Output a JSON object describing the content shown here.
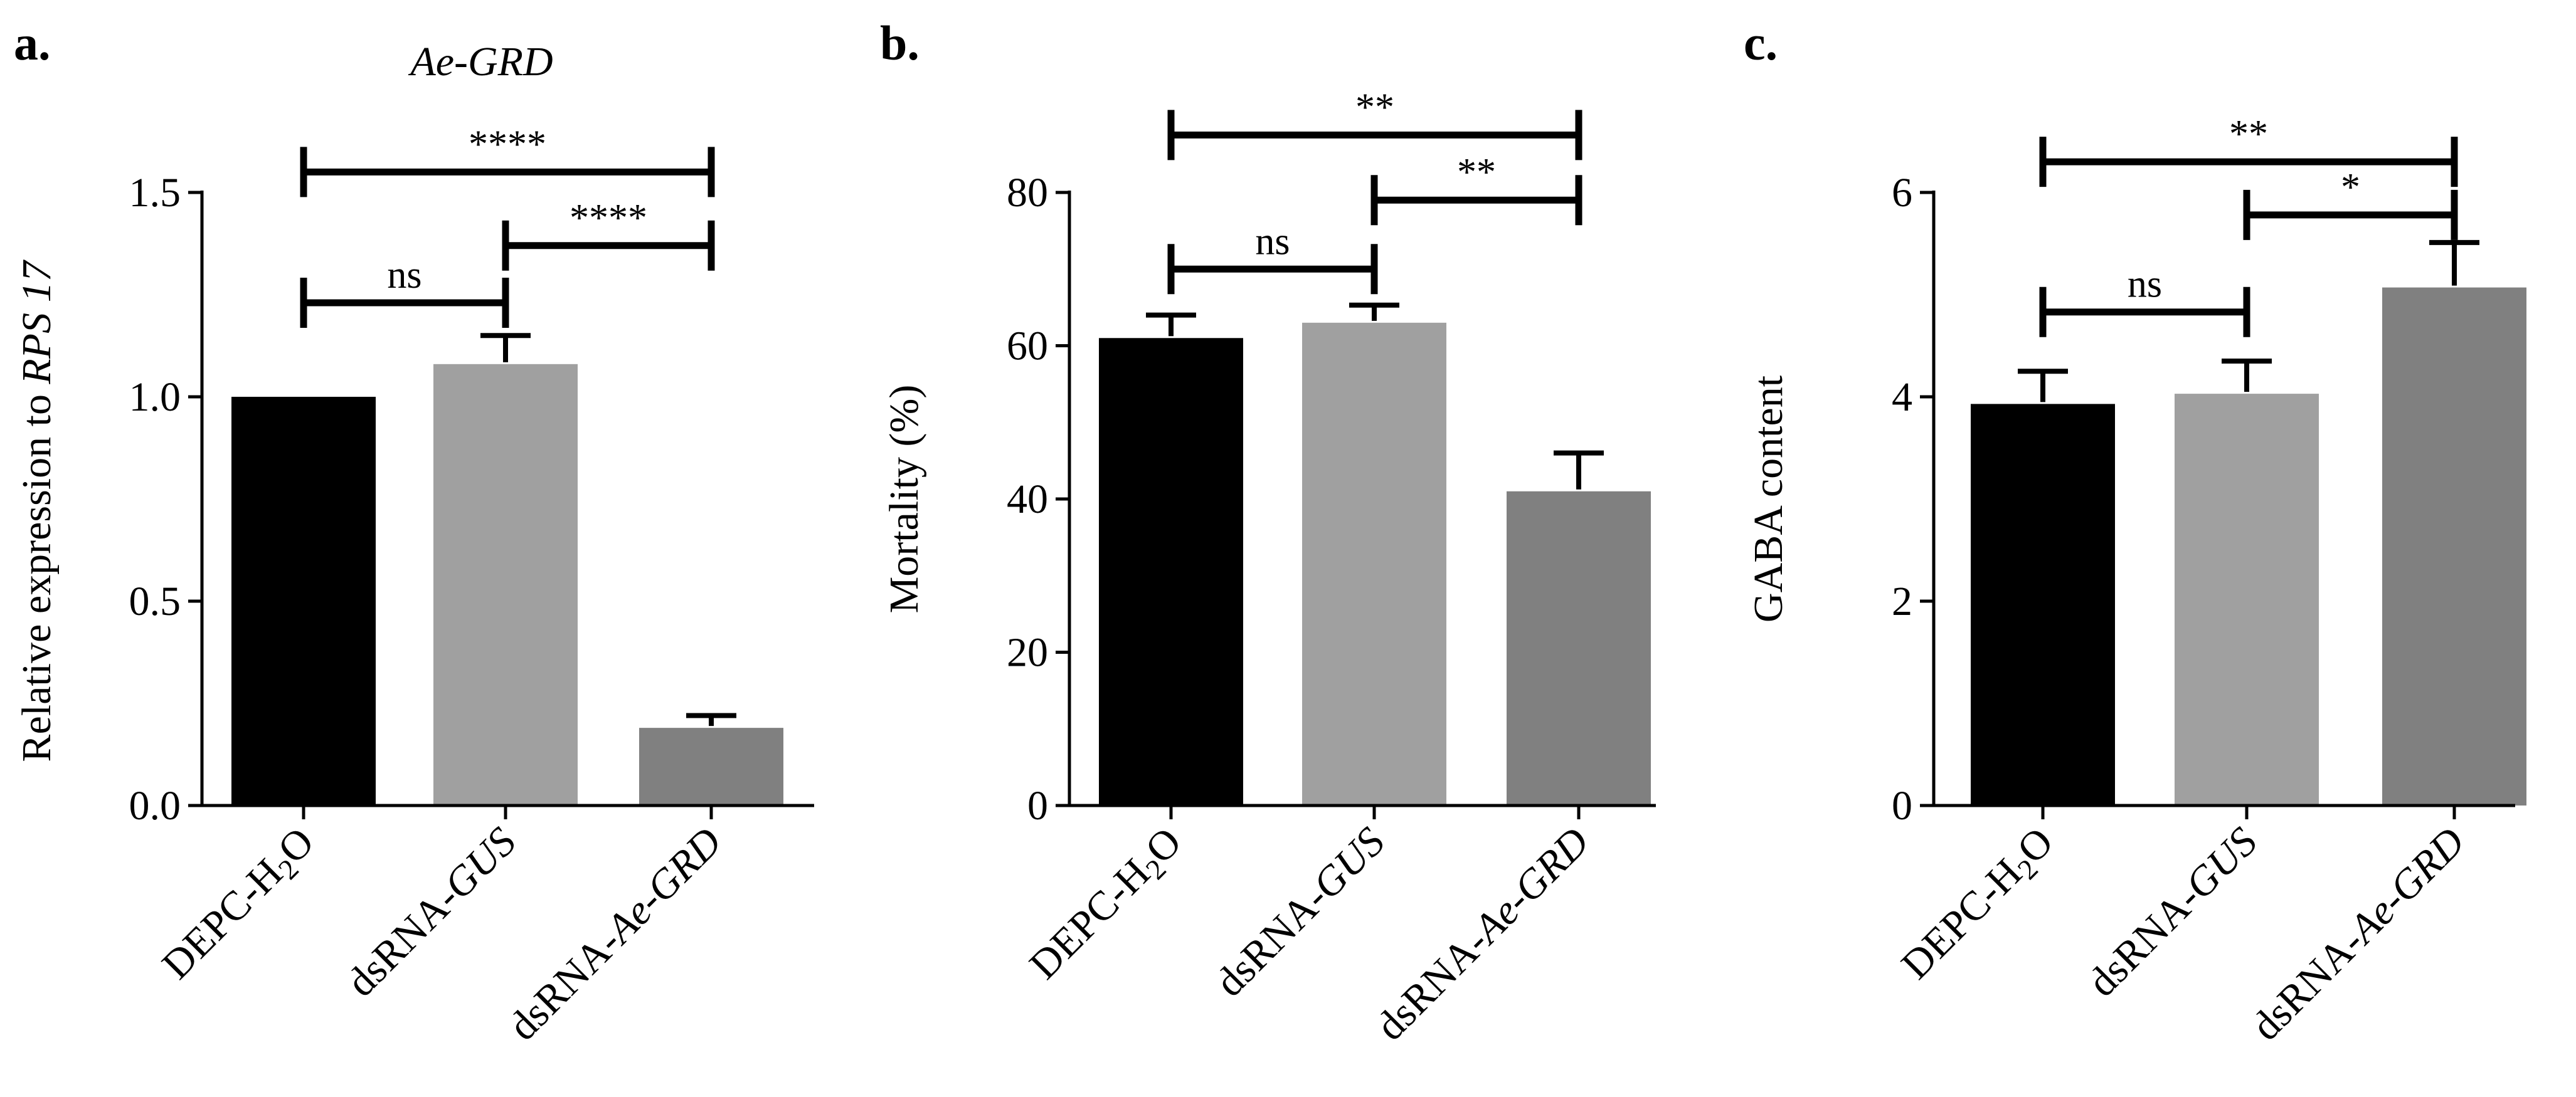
{
  "chart_data": [
    {
      "panel_label": "a.",
      "type": "bar",
      "title": "Ae-GRD",
      "ylabel": {
        "plain": "Relative expression to ",
        "italic": "RPS 17"
      },
      "ylim": [
        0,
        1.5
      ],
      "yticks": [
        {
          "value": 0.0,
          "label": "0.0"
        },
        {
          "value": 0.5,
          "label": "0.5"
        },
        {
          "value": 1.0,
          "label": "1.0"
        },
        {
          "value": 1.5,
          "label": "1.5"
        }
      ],
      "categories": [
        {
          "label": [
            {
              "text": "DEPC-H"
            },
            {
              "text": "2",
              "sub": true
            },
            {
              "text": "O"
            }
          ]
        },
        {
          "label": [
            {
              "text": "dsRNA-"
            },
            {
              "text": "GUS",
              "italic": true
            }
          ]
        },
        {
          "label": [
            {
              "text": "dsRNA-"
            },
            {
              "text": "Ae-GRD",
              "italic": true
            }
          ]
        }
      ],
      "values": [
        1.0,
        1.08,
        0.19
      ],
      "errors": [
        0.0,
        0.07,
        0.03
      ],
      "colors": [
        "#000000",
        "#a0a0a0",
        "#808080"
      ],
      "comparisons": [
        {
          "from": 0,
          "to": 1,
          "y": 1.23,
          "label": "ns"
        },
        {
          "from": 1,
          "to": 2,
          "y": 1.37,
          "label": "****"
        },
        {
          "from": 0,
          "to": 2,
          "y": 1.55,
          "label": "****"
        }
      ]
    },
    {
      "panel_label": "b.",
      "type": "bar",
      "title": "",
      "ylabel": {
        "plain": "Mortality (%)",
        "italic": ""
      },
      "ylim": [
        0,
        80
      ],
      "yticks": [
        {
          "value": 0,
          "label": "0"
        },
        {
          "value": 20,
          "label": "20"
        },
        {
          "value": 40,
          "label": "40"
        },
        {
          "value": 60,
          "label": "60"
        },
        {
          "value": 80,
          "label": "80"
        }
      ],
      "categories": [
        {
          "label": [
            {
              "text": "DEPC-H"
            },
            {
              "text": "2",
              "sub": true
            },
            {
              "text": "O"
            }
          ]
        },
        {
          "label": [
            {
              "text": "dsRNA-"
            },
            {
              "text": "GUS",
              "italic": true
            }
          ]
        },
        {
          "label": [
            {
              "text": "dsRNA-"
            },
            {
              "text": "Ae-GRD",
              "italic": true
            }
          ]
        }
      ],
      "values": [
        61,
        63,
        41
      ],
      "errors": [
        3,
        2.3,
        5
      ],
      "colors": [
        "#000000",
        "#a0a0a0",
        "#808080"
      ],
      "comparisons": [
        {
          "from": 0,
          "to": 1,
          "y": 70,
          "label": "ns"
        },
        {
          "from": 1,
          "to": 2,
          "y": 79,
          "label": "**"
        },
        {
          "from": 0,
          "to": 2,
          "y": 87.5,
          "label": "**"
        }
      ]
    },
    {
      "panel_label": "c.",
      "type": "bar",
      "title": "",
      "ylabel": {
        "plain": "GABA content",
        "italic": ""
      },
      "ylim": [
        0,
        6
      ],
      "yticks": [
        {
          "value": 0,
          "label": "0"
        },
        {
          "value": 2,
          "label": "2"
        },
        {
          "value": 4,
          "label": "4"
        },
        {
          "value": 6,
          "label": "6"
        }
      ],
      "categories": [
        {
          "label": [
            {
              "text": "DEPC-H"
            },
            {
              "text": "2",
              "sub": true
            },
            {
              "text": "O"
            }
          ]
        },
        {
          "label": [
            {
              "text": "dsRNA-"
            },
            {
              "text": "GUS",
              "italic": true
            }
          ]
        },
        {
          "label": [
            {
              "text": "dsRNA-"
            },
            {
              "text": "Ae-GRD",
              "italic": true
            }
          ]
        }
      ],
      "values": [
        3.93,
        4.03,
        5.07
      ],
      "errors": [
        0.32,
        0.32,
        0.44
      ],
      "colors": [
        "#000000",
        "#a0a0a0",
        "#808080"
      ],
      "comparisons": [
        {
          "from": 0,
          "to": 1,
          "y": 4.83,
          "label": "ns"
        },
        {
          "from": 1,
          "to": 2,
          "y": 5.78,
          "label": "*"
        },
        {
          "from": 0,
          "to": 2,
          "y": 6.3,
          "label": "**"
        }
      ]
    }
  ]
}
